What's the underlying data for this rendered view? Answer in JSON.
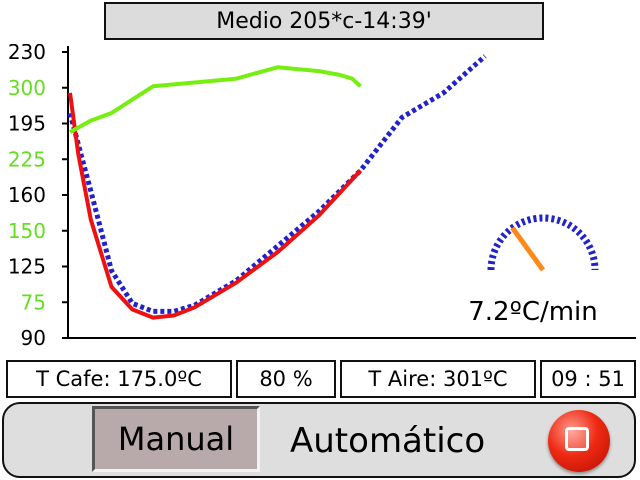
{
  "header": {
    "title": "Medio 205*c-14:39'"
  },
  "chart_data": {
    "type": "line",
    "left_axis_labels": [
      {
        "text": "230",
        "color": "#000000"
      },
      {
        "text": "300",
        "color": "#66dd22"
      },
      {
        "text": "195",
        "color": "#000000"
      },
      {
        "text": "225",
        "color": "#66dd22"
      },
      {
        "text": "160",
        "color": "#000000"
      },
      {
        "text": "150",
        "color": "#66dd22"
      },
      {
        "text": "125",
        "color": "#000000"
      },
      {
        "text": "75",
        "color": "#66dd22"
      },
      {
        "text": "90",
        "color": "#000000"
      }
    ],
    "ylim_temp": [
      90,
      230
    ],
    "ylim_air": [
      0,
      375
    ],
    "x_progress_range": [
      0,
      1
    ],
    "series": [
      {
        "color": "#2222cc",
        "style": "dotted",
        "axis": "temp",
        "x": [
          0.0,
          0.05,
          0.1,
          0.15,
          0.2,
          0.25,
          0.3,
          0.4,
          0.5,
          0.6,
          0.7,
          0.8,
          0.9,
          1.0
        ],
        "y": [
          200,
          162,
          123,
          107,
          103,
          103,
          106,
          118,
          135,
          152,
          172,
          198,
          210,
          228
        ]
      },
      {
        "color": "#ee1111",
        "style": "solid",
        "axis": "temp",
        "x": [
          0.0,
          0.02,
          0.05,
          0.1,
          0.15,
          0.2,
          0.25,
          0.3,
          0.4,
          0.5,
          0.6,
          0.7
        ],
        "y": [
          210,
          180,
          148,
          115,
          104,
          100,
          101,
          105,
          117,
          132,
          150,
          172
        ]
      },
      {
        "color": "#77ee11",
        "style": "solid",
        "axis": "air",
        "x": [
          0.0,
          0.05,
          0.1,
          0.2,
          0.3,
          0.4,
          0.5,
          0.6,
          0.65,
          0.68,
          0.7
        ],
        "y": [
          270,
          285,
          295,
          330,
          335,
          340,
          355,
          350,
          345,
          340,
          330
        ]
      }
    ]
  },
  "gauge": {
    "value": 0.3,
    "label": "7.2ºC/min"
  },
  "readouts": {
    "coffee_temp": "T Cafe: 175.0ºC",
    "percent": "80 %",
    "air_temp": "T Aire: 301ºC",
    "time": "09 : 51"
  },
  "controls": {
    "manual_label": "Manual",
    "auto_label": "Automático",
    "stop_icon": "stop-square-icon"
  }
}
